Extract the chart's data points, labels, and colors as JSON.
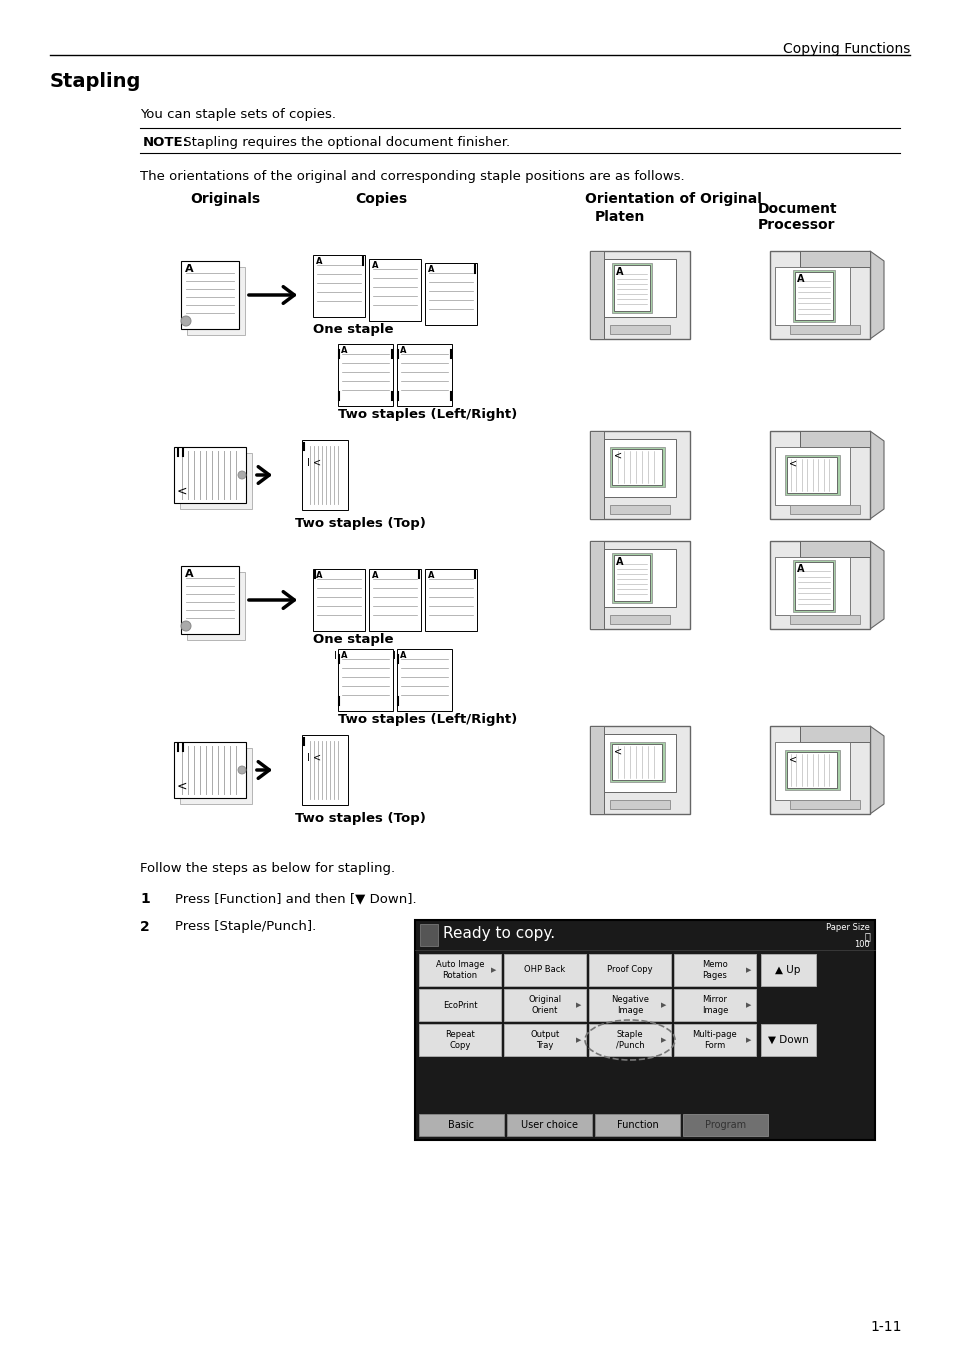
{
  "page_header": "Copying Functions",
  "section_title": "Stapling",
  "body_text1": "You can staple sets of copies.",
  "note_label": "NOTE:",
  "note_text": " Stapling requires the optional document finisher.",
  "orient_text": "The orientations of the original and corresponding staple positions are as follows.",
  "col_originals": "Originals",
  "col_copies": "Copies",
  "col_orient": "Orientation of Original",
  "col_platen": "Platen",
  "col_docproc": "Document\nProcessor",
  "label_one_staple_1": "One staple",
  "label_two_lr_1": "Two staples (Left/Right)",
  "label_two_top_1": "Two staples (Top)",
  "label_one_staple_2": "One staple",
  "label_two_lr_2": "Two staples (Left/Right)",
  "label_two_top_2": "Two staples (Top)",
  "follow_text": "Follow the steps as below for stapling.",
  "step1_num": "1",
  "step1_text": "Press [Function] and then [▼ Down].",
  "step2_num": "2",
  "step2_text": "Press [Staple/Punch].",
  "page_number": "1-11",
  "ready_text": "Ready to copy.",
  "paper_size_label": "Paper Size",
  "paper_size_icon": "口",
  "paper_size_val": "100",
  "btn_labels": [
    [
      "Auto Image\nRotation",
      "OHP Back",
      "Proof Copy",
      "Memo\nPages"
    ],
    [
      "EcoPrint",
      "Original\nOrient",
      "Negative\nImage",
      "Mirror\nImage"
    ],
    [
      "Repeat\nCopy",
      "Output\nTray",
      "Staple\n/Punch",
      "Multi-page\nForm"
    ]
  ],
  "tab_labels": [
    "Basic",
    "User choice",
    "Function",
    "Program"
  ],
  "up_btn": "▲ Up",
  "down_btn": "▼ Down",
  "bg_color": "#ffffff",
  "green_color": "#a8d0a8",
  "gray_light": "#e8e8e8",
  "gray_med": "#cccccc",
  "gray_dark": "#888888",
  "black": "#000000",
  "ui_bg": "#1a1a1a",
  "btn_bg": "#e0e0e0",
  "staple_highlight_color": "#bbbbbb"
}
